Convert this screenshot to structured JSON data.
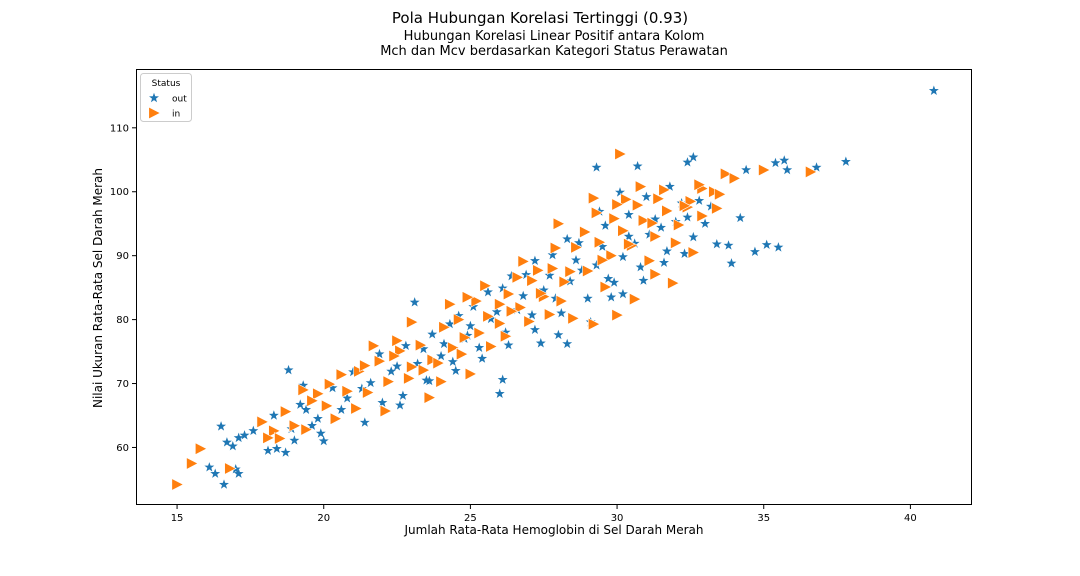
{
  "chart_data": {
    "type": "scatter",
    "suptitle": "Pola Hubungan Korelasi Tertinggi (0.93)",
    "title": "Hubungan Korelasi Linear Positif antara Kolom\nMch dan Mcv berdasarkan Kategori Status Perawatan",
    "xlabel": "Jumlah Rata-Rata Hemoglobin di Sel Darah Merah",
    "ylabel": "Nilai Ukuran Rata-Rata Sel Darah Merah",
    "xlim": [
      13.6,
      42.1
    ],
    "ylim": [
      51.0,
      119.2
    ],
    "xticks": [
      15,
      20,
      25,
      30,
      35,
      40
    ],
    "yticks": [
      60,
      70,
      80,
      90,
      100,
      110
    ],
    "grid": false,
    "legend": {
      "title": "Status",
      "placement": "upper-left"
    },
    "colors": {
      "out": "#1f77b4",
      "in": "#ff7f0e"
    },
    "series": [
      {
        "name": "out",
        "marker": "star",
        "points": [
          [
            40.8,
            115.8
          ],
          [
            37.8,
            104.7
          ],
          [
            36.8,
            103.8
          ],
          [
            35.7,
            104.9
          ],
          [
            35.4,
            104.5
          ],
          [
            35.8,
            103.4
          ],
          [
            35.1,
            91.7
          ],
          [
            35.5,
            91.3
          ],
          [
            34.7,
            90.6
          ],
          [
            33.9,
            88.8
          ],
          [
            33.8,
            91.6
          ],
          [
            33.4,
            91.8
          ],
          [
            34.2,
            95.9
          ],
          [
            34.4,
            103.4
          ],
          [
            32.6,
            105.4
          ],
          [
            32.4,
            104.6
          ],
          [
            30.7,
            104.0
          ],
          [
            29.3,
            103.8
          ],
          [
            16.5,
            63.3
          ],
          [
            17.1,
            61.5
          ],
          [
            16.9,
            60.2
          ],
          [
            17.0,
            56.6
          ],
          [
            17.1,
            55.9
          ],
          [
            16.6,
            54.2
          ],
          [
            16.1,
            56.9
          ],
          [
            16.3,
            55.9
          ],
          [
            18.3,
            65.0
          ],
          [
            18.8,
            72.1
          ],
          [
            19.3,
            69.7
          ],
          [
            23.1,
            82.7
          ],
          [
            26.1,
            70.6
          ],
          [
            26.0,
            68.4
          ],
          [
            28.3,
            76.2
          ],
          [
            16.7,
            60.8
          ],
          [
            17.3,
            61.9
          ],
          [
            17.6,
            62.6
          ],
          [
            18.1,
            59.5
          ],
          [
            18.4,
            59.8
          ],
          [
            18.7,
            59.2
          ],
          [
            19.0,
            61.1
          ],
          [
            19.4,
            65.9
          ],
          [
            19.6,
            63.4
          ],
          [
            19.9,
            62.2
          ],
          [
            20.0,
            61.0
          ],
          [
            19.2,
            66.7
          ],
          [
            18.9,
            62.9
          ],
          [
            21.4,
            63.9
          ],
          [
            22.0,
            67.0
          ],
          [
            22.6,
            66.6
          ],
          [
            23.5,
            70.5
          ],
          [
            24.0,
            74.3
          ],
          [
            24.4,
            73.4
          ],
          [
            24.9,
            77.5
          ],
          [
            25.3,
            75.6
          ],
          [
            25.7,
            80.1
          ],
          [
            26.2,
            78.0
          ],
          [
            26.6,
            81.5
          ],
          [
            27.1,
            80.7
          ],
          [
            27.5,
            84.6
          ],
          [
            27.9,
            83.3
          ],
          [
            28.4,
            86.0
          ],
          [
            28.8,
            87.7
          ],
          [
            29.3,
            88.5
          ],
          [
            29.7,
            86.4
          ],
          [
            30.2,
            89.8
          ],
          [
            30.6,
            91.9
          ],
          [
            31.1,
            93.3
          ],
          [
            31.5,
            94.4
          ],
          [
            32.0,
            95.3
          ],
          [
            32.4,
            96.0
          ],
          [
            32.8,
            98.6
          ],
          [
            33.2,
            97.7
          ],
          [
            30.1,
            99.9
          ],
          [
            31.0,
            99.2
          ],
          [
            31.8,
            100.8
          ],
          [
            29.6,
            94.7
          ],
          [
            30.4,
            96.4
          ],
          [
            28.3,
            92.6
          ],
          [
            27.2,
            89.2
          ],
          [
            26.4,
            86.8
          ],
          [
            25.6,
            84.3
          ],
          [
            24.6,
            80.6
          ],
          [
            23.7,
            77.7
          ],
          [
            22.8,
            75.9
          ],
          [
            21.9,
            74.6
          ],
          [
            21.0,
            71.8
          ],
          [
            20.3,
            69.3
          ],
          [
            20.8,
            67.7
          ],
          [
            21.6,
            70.1
          ],
          [
            22.3,
            71.9
          ],
          [
            23.2,
            73.1
          ],
          [
            24.1,
            76.2
          ],
          [
            25.0,
            79.0
          ],
          [
            25.9,
            81.2
          ],
          [
            26.8,
            83.7
          ],
          [
            27.7,
            86.9
          ],
          [
            28.6,
            89.3
          ],
          [
            29.5,
            91.4
          ],
          [
            30.4,
            93.0
          ],
          [
            31.3,
            95.7
          ],
          [
            32.2,
            98.2
          ],
          [
            33.0,
            95.0
          ],
          [
            32.6,
            92.9
          ],
          [
            31.7,
            90.7
          ],
          [
            30.8,
            88.2
          ],
          [
            29.9,
            85.8
          ],
          [
            29.0,
            83.3
          ],
          [
            28.1,
            81.0
          ],
          [
            27.2,
            78.4
          ],
          [
            26.3,
            76.0
          ],
          [
            25.4,
            73.9
          ],
          [
            24.5,
            72.0
          ],
          [
            23.6,
            70.4
          ],
          [
            22.7,
            68.1
          ],
          [
            24.3,
            79.3
          ],
          [
            25.1,
            82.0
          ],
          [
            26.9,
            87.0
          ],
          [
            27.8,
            90.1
          ],
          [
            28.7,
            92.0
          ],
          [
            29.4,
            96.9
          ],
          [
            27.4,
            76.3
          ],
          [
            28.0,
            77.6
          ],
          [
            29.8,
            83.5
          ],
          [
            30.9,
            86.1
          ],
          [
            31.6,
            88.9
          ],
          [
            32.3,
            90.3
          ],
          [
            26.1,
            84.9
          ],
          [
            24.8,
            77.0
          ],
          [
            23.4,
            75.4
          ],
          [
            22.5,
            72.7
          ],
          [
            21.3,
            69.2
          ],
          [
            20.6,
            65.9
          ],
          [
            19.8,
            64.5
          ],
          [
            29.1,
            79.6
          ],
          [
            30.2,
            84.0
          ]
        ]
      },
      {
        "name": "in",
        "marker": "triangle-right",
        "points": [
          [
            15.0,
            54.2
          ],
          [
            15.5,
            57.5
          ],
          [
            15.8,
            59.8
          ],
          [
            16.8,
            56.7
          ],
          [
            30.1,
            105.9
          ],
          [
            36.6,
            103.1
          ],
          [
            35.0,
            103.4
          ],
          [
            33.7,
            102.8
          ],
          [
            34.0,
            102.1
          ],
          [
            33.3,
            100.0
          ],
          [
            32.9,
            100.5
          ],
          [
            32.4,
            97.6
          ],
          [
            31.4,
            98.9
          ],
          [
            30.3,
            98.8
          ],
          [
            29.2,
            99.0
          ],
          [
            17.9,
            64.0
          ],
          [
            18.3,
            62.6
          ],
          [
            18.5,
            61.4
          ],
          [
            18.7,
            65.6
          ],
          [
            19.0,
            63.4
          ],
          [
            19.4,
            62.8
          ],
          [
            19.8,
            68.4
          ],
          [
            20.1,
            66.5
          ],
          [
            20.4,
            64.5
          ],
          [
            20.8,
            68.8
          ],
          [
            21.2,
            71.9
          ],
          [
            21.5,
            68.6
          ],
          [
            21.9,
            73.5
          ],
          [
            22.2,
            70.3
          ],
          [
            22.6,
            75.1
          ],
          [
            23.0,
            72.6
          ],
          [
            23.3,
            76.0
          ],
          [
            23.7,
            73.7
          ],
          [
            24.1,
            78.8
          ],
          [
            24.4,
            75.6
          ],
          [
            24.8,
            77.2
          ],
          [
            25.2,
            82.9
          ],
          [
            25.6,
            80.5
          ],
          [
            26.0,
            79.4
          ],
          [
            26.3,
            84.0
          ],
          [
            26.7,
            81.9
          ],
          [
            27.1,
            86.1
          ],
          [
            27.5,
            83.6
          ],
          [
            27.8,
            88.0
          ],
          [
            28.2,
            85.9
          ],
          [
            28.6,
            91.3
          ],
          [
            29.0,
            87.6
          ],
          [
            29.4,
            92.1
          ],
          [
            29.8,
            90.0
          ],
          [
            30.2,
            93.9
          ],
          [
            30.5,
            91.6
          ],
          [
            30.9,
            95.5
          ],
          [
            31.3,
            93.0
          ],
          [
            31.7,
            97.0
          ],
          [
            32.1,
            94.8
          ],
          [
            32.5,
            98.5
          ],
          [
            32.9,
            96.2
          ],
          [
            33.4,
            97.4
          ],
          [
            22.1,
            65.7
          ],
          [
            23.6,
            67.8
          ],
          [
            24.0,
            70.3
          ],
          [
            25.0,
            71.5
          ],
          [
            25.7,
            75.8
          ],
          [
            27.0,
            79.7
          ],
          [
            27.7,
            80.8
          ],
          [
            28.5,
            80.2
          ],
          [
            29.2,
            79.3
          ],
          [
            30.0,
            80.7
          ],
          [
            30.6,
            83.2
          ],
          [
            31.3,
            87.1
          ],
          [
            31.9,
            85.7
          ],
          [
            32.6,
            90.5
          ],
          [
            26.8,
            89.1
          ],
          [
            25.5,
            85.3
          ],
          [
            24.3,
            82.4
          ],
          [
            23.0,
            79.6
          ],
          [
            21.7,
            75.9
          ],
          [
            28.0,
            95.0
          ],
          [
            29.3,
            96.7
          ],
          [
            30.8,
            100.8
          ],
          [
            31.6,
            100.3
          ],
          [
            18.1,
            61.5
          ],
          [
            19.6,
            67.3
          ],
          [
            20.6,
            71.4
          ],
          [
            21.1,
            66.1
          ],
          [
            22.9,
            70.8
          ],
          [
            23.9,
            73.2
          ],
          [
            25.3,
            77.9
          ],
          [
            26.4,
            81.3
          ],
          [
            27.4,
            84.1
          ],
          [
            28.4,
            87.5
          ],
          [
            29.5,
            89.3
          ],
          [
            30.4,
            91.8
          ],
          [
            31.2,
            95.1
          ],
          [
            32.3,
            97.8
          ],
          [
            22.5,
            76.7
          ],
          [
            24.6,
            80.0
          ],
          [
            26.0,
            82.4
          ],
          [
            27.9,
            91.2
          ],
          [
            29.9,
            95.8
          ],
          [
            30.7,
            97.9
          ],
          [
            32.8,
            101.1
          ],
          [
            33.5,
            99.6
          ],
          [
            19.3,
            69.0
          ],
          [
            20.2,
            69.9
          ],
          [
            21.4,
            72.8
          ],
          [
            22.4,
            74.3
          ],
          [
            24.9,
            83.5
          ],
          [
            26.6,
            86.6
          ],
          [
            28.9,
            93.7
          ],
          [
            31.1,
            89.2
          ],
          [
            32.0,
            92.0
          ],
          [
            29.6,
            85.1
          ],
          [
            28.1,
            82.9
          ],
          [
            26.2,
            77.4
          ],
          [
            24.7,
            74.6
          ],
          [
            23.4,
            72.1
          ],
          [
            27.3,
            87.7
          ],
          [
            30.0,
            98.0
          ]
        ]
      }
    ]
  }
}
